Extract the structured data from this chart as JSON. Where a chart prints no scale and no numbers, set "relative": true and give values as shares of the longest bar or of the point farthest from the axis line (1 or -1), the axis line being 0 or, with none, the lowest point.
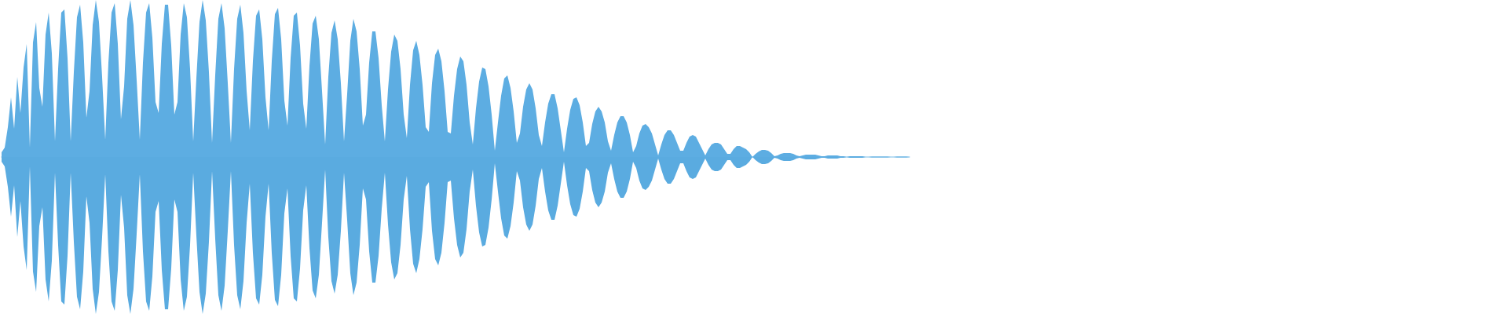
{
  "chart_data": {
    "type": "area",
    "relative": true,
    "categories": [
      null,
      null,
      null,
      null,
      null,
      null,
      null,
      null,
      null,
      null,
      null,
      null,
      null,
      null,
      null,
      null,
      null,
      null,
      null,
      null,
      null,
      null,
      null,
      null,
      null,
      null,
      null,
      null,
      null,
      null,
      null,
      null,
      null,
      null,
      null,
      null,
      null,
      null,
      null,
      null,
      null,
      null,
      null,
      null,
      null,
      null,
      null,
      null,
      null,
      null,
      null,
      null,
      null,
      null,
      null,
      null,
      null,
      null,
      null,
      null,
      null,
      null,
      null,
      null,
      null,
      null,
      null,
      null,
      null,
      null,
      null,
      null,
      null,
      null,
      null,
      null,
      null,
      null,
      null,
      null,
      null,
      null,
      null,
      null,
      null,
      null,
      null,
      null,
      null,
      null,
      null,
      null,
      null,
      null,
      null,
      null,
      null,
      null,
      null,
      null,
      null,
      null,
      null,
      null,
      null,
      null,
      null,
      null,
      null,
      null,
      null,
      null,
      null,
      null,
      null,
      null,
      null,
      null,
      null,
      null,
      null,
      null,
      null,
      null,
      null,
      null,
      null,
      null,
      null,
      null,
      null,
      null,
      null,
      null,
      null,
      null,
      null,
      null,
      null,
      null,
      null,
      null,
      null,
      null,
      null,
      null,
      null,
      null,
      null,
      null,
      null,
      null,
      null,
      null,
      null,
      null,
      null,
      null,
      null,
      null,
      null,
      null,
      null,
      null,
      null,
      null,
      null,
      null,
      null,
      null,
      null,
      null,
      null,
      null,
      null,
      null,
      null,
      null,
      null,
      null,
      null,
      null,
      null,
      null,
      null,
      null,
      null,
      null,
      null,
      null,
      null,
      null,
      null,
      null,
      null,
      null,
      null,
      null,
      null,
      null,
      null,
      null,
      null,
      null,
      null,
      null,
      null,
      null,
      null,
      null,
      null,
      null,
      null,
      null,
      null,
      null,
      null,
      null,
      null,
      null,
      null,
      null,
      null,
      null,
      null,
      null,
      null,
      null,
      null,
      null,
      null,
      null,
      null,
      null,
      null,
      null,
      null,
      null,
      null,
      null,
      null,
      null,
      null,
      null,
      null,
      null,
      null,
      null,
      null,
      null,
      null,
      null,
      null,
      null,
      null,
      null,
      null,
      null,
      null,
      null,
      null,
      null,
      null,
      null,
      null,
      null,
      null,
      null,
      null,
      null,
      null,
      null,
      null,
      null,
      null,
      null,
      null,
      null,
      null,
      null,
      null,
      null,
      null,
      null,
      null,
      null,
      null,
      null,
      null,
      null,
      null,
      null,
      null,
      null,
      null,
      null,
      null,
      null,
      null,
      null,
      null,
      null,
      null,
      null,
      null,
      null,
      null,
      null,
      null,
      null,
      null,
      null,
      null,
      null,
      null,
      null,
      null,
      null,
      null,
      null,
      null,
      null,
      null,
      null,
      null,
      null,
      null,
      null,
      null,
      null,
      null,
      null,
      null,
      null,
      null,
      null,
      null,
      null,
      null,
      null,
      null,
      null,
      null,
      null,
      null,
      null,
      null,
      null,
      null,
      null,
      null,
      null,
      null,
      null,
      null,
      null,
      null,
      null,
      null,
      null,
      null,
      null,
      null,
      null,
      null,
      null,
      null,
      null,
      null,
      null,
      null,
      null,
      null,
      null,
      null,
      null,
      null,
      null,
      null,
      null,
      null,
      null,
      null,
      null,
      null,
      null,
      null,
      null,
      null,
      null,
      null,
      null,
      null,
      null,
      null,
      null,
      null,
      null,
      null,
      null,
      null,
      null,
      null,
      null,
      null,
      null,
      null,
      null,
      null,
      null,
      null,
      null,
      null,
      null,
      null,
      null,
      null,
      null,
      null,
      null,
      null,
      null,
      null,
      null,
      null,
      null,
      null,
      null,
      null,
      null,
      null,
      null,
      null,
      null,
      null,
      null,
      null,
      null,
      null,
      null,
      null,
      null,
      null,
      null,
      null,
      null,
      null,
      null,
      null,
      null,
      null,
      null,
      null,
      null,
      null,
      null,
      null,
      null,
      null,
      null,
      null,
      null,
      null,
      null,
      null,
      null,
      null,
      null,
      null,
      null,
      null,
      null,
      null,
      null,
      null,
      null,
      null,
      null,
      null,
      null
    ],
    "series": [
      {
        "color": "#5dade2",
        "values": [
          0.03,
          0.06,
          0.19,
          0.38,
          0.18,
          0.51,
          0.28,
          0.57,
          0.72,
          0.06,
          0.73,
          0.86,
          0.44,
          0.32,
          0.78,
          0.92,
          0.66,
          0.1,
          0.56,
          0.92,
          0.94,
          0.63,
          0.1,
          0.54,
          0.89,
          0.97,
          0.73,
          0.25,
          0.42,
          0.84,
          1,
          0.86,
          0.51,
          0.11,
          0.6,
          0.92,
          0.98,
          0.72,
          0.24,
          0.45,
          0.88,
          1,
          0.84,
          0.49,
          0.11,
          0.6,
          0.92,
          0.98,
          0.76,
          0.35,
          0.28,
          0.72,
          0.97,
          0.97,
          0.71,
          0.27,
          0.35,
          0.78,
          0.98,
          0.89,
          0.56,
          0.1,
          0.5,
          0.86,
          1,
          0.87,
          0.54,
          0.09,
          0.52,
          0.88,
          0.98,
          0.82,
          0.47,
          0.09,
          0.56,
          0.88,
          0.97,
          0.79,
          0.42,
          0.17,
          0.61,
          0.9,
          0.94,
          0.75,
          0.38,
          0.17,
          0.61,
          0.91,
          0.95,
          0.75,
          0.36,
          0.2,
          0.63,
          0.9,
          0.92,
          0.71,
          0.34,
          0.18,
          0.58,
          0.85,
          0.9,
          0.75,
          0.42,
          0.08,
          0.51,
          0.79,
          0.87,
          0.75,
          0.47,
          0.1,
          0.4,
          0.74,
          0.88,
          0.8,
          0.56,
          0.2,
          0.27,
          0.6,
          0.8,
          0.8,
          0.63,
          0.33,
          0.1,
          0.43,
          0.67,
          0.78,
          0.74,
          0.56,
          0.27,
          0.12,
          0.46,
          0.68,
          0.74,
          0.65,
          0.46,
          0.19,
          0.16,
          0.47,
          0.65,
          0.69,
          0.61,
          0.42,
          0.16,
          0.15,
          0.39,
          0.56,
          0.64,
          0.61,
          0.46,
          0.22,
          0.08,
          0.31,
          0.48,
          0.57,
          0.56,
          0.45,
          0.27,
          0.04,
          0.22,
          0.39,
          0.5,
          0.52,
          0.44,
          0.29,
          0.09,
          0.15,
          0.32,
          0.43,
          0.47,
          0.43,
          0.31,
          0.14,
          0.07,
          0.22,
          0.34,
          0.4,
          0.4,
          0.31,
          0.17,
          0.03,
          0.18,
          0.3,
          0.37,
          0.38,
          0.33,
          0.22,
          0.07,
          0.09,
          0.21,
          0.29,
          0.32,
          0.29,
          0.22,
          0.1,
          0.04,
          0.14,
          0.22,
          0.26,
          0.26,
          0.22,
          0.14,
          0.03,
          0.07,
          0.15,
          0.2,
          0.21,
          0.19,
          0.15,
          0.08,
          0.01,
          0.08,
          0.14,
          0.17,
          0.17,
          0.14,
          0.09,
          0.04,
          0.04,
          0.09,
          0.13,
          0.14,
          0.13,
          0.09,
          0.05,
          0.01,
          0.05,
          0.08,
          0.09,
          0.09,
          0.08,
          0.05,
          0.02,
          0.02,
          0.05,
          0.07,
          0.07,
          0.06,
          0.05,
          0.03,
          0,
          0.02,
          0.035,
          0.045,
          0.045,
          0.04,
          0.025,
          0.005,
          0.01,
          0.02,
          0.025,
          0.025,
          0.025,
          0.02,
          0.01,
          0.005,
          0.01,
          0.015,
          0.015,
          0.015,
          0.015,
          0.01,
          0.005,
          0.005,
          0.01,
          0.01,
          0.01,
          0.01,
          0.005,
          0.005,
          0,
          0.005,
          0.005,
          0.005,
          0.005,
          0.005,
          0,
          0,
          0.003,
          0.003,
          0.003,
          0.003,
          0.003,
          0.003,
          0,
          0,
          0.003,
          0.003,
          0.003,
          0.003,
          0,
          null,
          null,
          null,
          null,
          null,
          null,
          null,
          null,
          null,
          null,
          null,
          null,
          null,
          null,
          null,
          null,
          null,
          null,
          null,
          null,
          null,
          null,
          null,
          null,
          null,
          null,
          null,
          null,
          null,
          null,
          null,
          null,
          null,
          null,
          null,
          null,
          null,
          null,
          null,
          null,
          null,
          null,
          null,
          null,
          null,
          null,
          null,
          null,
          null,
          null,
          null,
          null,
          null,
          null,
          null,
          null,
          null,
          null,
          null,
          null,
          null,
          null,
          null,
          null,
          null,
          null,
          null,
          null,
          null,
          null,
          null,
          null,
          null,
          null,
          null,
          null,
          null,
          null,
          null,
          null,
          null,
          null,
          null,
          null,
          null,
          null,
          null,
          null,
          null,
          null,
          null,
          null,
          null,
          null,
          null,
          null,
          null,
          null,
          null,
          null,
          null,
          null,
          null,
          null,
          null,
          null,
          null,
          null,
          null,
          null,
          null,
          null,
          null,
          null,
          null,
          null,
          null,
          null,
          null,
          null,
          null,
          null,
          null,
          null,
          null,
          null,
          null,
          null,
          null,
          null,
          null,
          null,
          null,
          null,
          null,
          null,
          null,
          null,
          null,
          null,
          null,
          null,
          null,
          null,
          null,
          null,
          null,
          null,
          null,
          null,
          null,
          null,
          null,
          null,
          null,
          null,
          null,
          null,
          null,
          null,
          null,
          null,
          null,
          null,
          null,
          null,
          null,
          null,
          null,
          null,
          null,
          null,
          null,
          null,
          null,
          null,
          null,
          null,
          null,
          null,
          null,
          null,
          null,
          null,
          null,
          null,
          null,
          null,
          null,
          null
        ]
      },
      {
        "color": "#5aabe0",
        "values": [
          -0.03,
          -0.06,
          -0.19,
          -0.38,
          -0.18,
          -0.51,
          -0.28,
          -0.57,
          -0.72,
          -0.06,
          -0.73,
          -0.86,
          -0.44,
          -0.32,
          -0.78,
          -0.92,
          -0.66,
          -0.1,
          -0.56,
          -0.92,
          -0.94,
          -0.63,
          -0.1,
          -0.54,
          -0.89,
          -0.97,
          -0.73,
          -0.25,
          -0.42,
          -0.84,
          -1,
          -0.86,
          -0.51,
          -0.11,
          -0.6,
          -0.92,
          -0.98,
          -0.72,
          -0.24,
          -0.45,
          -0.88,
          -1,
          -0.84,
          -0.49,
          -0.11,
          -0.6,
          -0.92,
          -0.98,
          -0.76,
          -0.35,
          -0.28,
          -0.72,
          -0.97,
          -0.97,
          -0.71,
          -0.27,
          -0.35,
          -0.78,
          -0.98,
          -0.89,
          -0.56,
          -0.1,
          -0.5,
          -0.86,
          -1,
          -0.87,
          -0.54,
          -0.09,
          -0.52,
          -0.88,
          -0.98,
          -0.82,
          -0.47,
          -0.09,
          -0.56,
          -0.88,
          -0.97,
          -0.79,
          -0.42,
          -0.17,
          -0.61,
          -0.9,
          -0.94,
          -0.75,
          -0.38,
          -0.17,
          -0.61,
          -0.91,
          -0.95,
          -0.75,
          -0.36,
          -0.2,
          -0.63,
          -0.9,
          -0.92,
          -0.71,
          -0.34,
          -0.18,
          -0.58,
          -0.85,
          -0.9,
          -0.75,
          -0.42,
          -0.08,
          -0.51,
          -0.79,
          -0.87,
          -0.75,
          -0.47,
          -0.1,
          -0.4,
          -0.74,
          -0.88,
          -0.8,
          -0.56,
          -0.2,
          -0.27,
          -0.6,
          -0.8,
          -0.8,
          -0.63,
          -0.33,
          -0.1,
          -0.43,
          -0.67,
          -0.78,
          -0.74,
          -0.56,
          -0.27,
          -0.12,
          -0.46,
          -0.68,
          -0.74,
          -0.65,
          -0.46,
          -0.19,
          -0.16,
          -0.47,
          -0.65,
          -0.69,
          -0.61,
          -0.42,
          -0.16,
          -0.15,
          -0.39,
          -0.56,
          -0.64,
          -0.61,
          -0.46,
          -0.22,
          -0.08,
          -0.31,
          -0.48,
          -0.57,
          -0.56,
          -0.45,
          -0.27,
          -0.04,
          -0.22,
          -0.39,
          -0.5,
          -0.52,
          -0.44,
          -0.29,
          -0.09,
          -0.15,
          -0.32,
          -0.43,
          -0.47,
          -0.43,
          -0.31,
          -0.14,
          -0.07,
          -0.22,
          -0.34,
          -0.4,
          -0.4,
          -0.31,
          -0.17,
          -0.03,
          -0.18,
          -0.3,
          -0.37,
          -0.38,
          -0.33,
          -0.22,
          -0.07,
          -0.09,
          -0.21,
          -0.29,
          -0.32,
          -0.29,
          -0.22,
          -0.1,
          -0.04,
          -0.14,
          -0.22,
          -0.26,
          -0.26,
          -0.22,
          -0.14,
          -0.03,
          -0.07,
          -0.15,
          -0.2,
          -0.21,
          -0.19,
          -0.15,
          -0.08,
          -0.01,
          -0.08,
          -0.14,
          -0.17,
          -0.17,
          -0.14,
          -0.09,
          -0.04,
          -0.04,
          -0.09,
          -0.13,
          -0.14,
          -0.13,
          -0.09,
          -0.05,
          -0.01,
          -0.05,
          -0.08,
          -0.09,
          -0.09,
          -0.08,
          -0.05,
          -0.02,
          -0.02,
          -0.05,
          -0.07,
          -0.07,
          -0.06,
          -0.05,
          -0.03,
          0,
          -0.02,
          -0.035,
          -0.045,
          -0.045,
          -0.04,
          -0.025,
          -0.005,
          -0.01,
          -0.02,
          -0.025,
          -0.025,
          -0.025,
          -0.02,
          -0.01,
          -0.005,
          -0.01,
          -0.015,
          -0.015,
          -0.015,
          -0.015,
          -0.01,
          -0.005,
          -0.005,
          -0.01,
          -0.01,
          -0.01,
          -0.01,
          -0.005,
          -0.005,
          0,
          -0.005,
          -0.005,
          -0.005,
          -0.005,
          -0.005,
          0,
          0,
          -0.003,
          -0.003,
          -0.003,
          -0.003,
          -0.003,
          -0.003,
          0,
          0,
          -0.003,
          -0.003,
          -0.003,
          -0.003,
          0,
          null,
          null,
          null,
          null,
          null,
          null,
          null,
          null,
          null,
          null,
          null,
          null,
          null,
          null,
          null,
          null,
          null,
          null,
          null,
          null,
          null,
          null,
          null,
          null,
          null,
          null,
          null,
          null,
          null,
          null,
          null,
          null,
          null,
          null,
          null,
          null,
          null,
          null,
          null,
          null,
          null,
          null,
          null,
          null,
          null,
          null,
          null,
          null,
          null,
          null,
          null,
          null,
          null,
          null,
          null,
          null,
          null,
          null,
          null,
          null,
          null,
          null,
          null,
          null,
          null,
          null,
          null,
          null,
          null,
          null,
          null,
          null,
          null,
          null,
          null,
          null,
          null,
          null,
          null,
          null,
          null,
          null,
          null,
          null,
          null,
          null,
          null,
          null,
          null,
          null,
          null,
          null,
          null,
          null,
          null,
          null,
          null,
          null,
          null,
          null,
          null,
          null,
          null,
          null,
          null,
          null,
          null,
          null,
          null,
          null,
          null,
          null,
          null,
          null,
          null,
          null,
          null,
          null,
          null,
          null,
          null,
          null,
          null,
          null,
          null,
          null,
          null,
          null,
          null,
          null,
          null,
          null,
          null,
          null,
          null,
          null,
          null,
          null,
          null,
          null,
          null,
          null,
          null,
          null,
          null,
          null,
          null,
          null,
          null,
          null,
          null,
          null,
          null,
          null,
          null,
          null,
          null,
          null,
          null,
          null,
          null,
          null,
          null,
          null,
          null,
          null,
          null,
          null,
          null,
          null,
          null,
          null,
          null,
          null,
          null,
          null,
          null,
          null,
          null,
          null,
          null,
          null,
          null,
          null,
          null,
          null,
          null,
          null,
          null,
          null
        ]
      }
    ]
  }
}
